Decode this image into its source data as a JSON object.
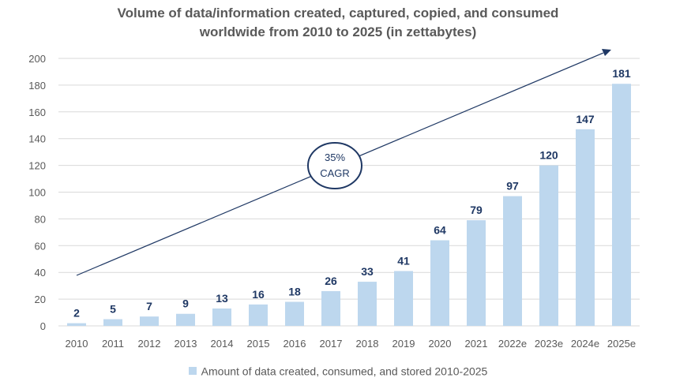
{
  "chart_data": {
    "type": "bar",
    "title_line1": "Volume of data/information created, captured, copied, and consumed",
    "title_line2": "worldwide from 2010 to 2025 (in zettabytes)",
    "categories": [
      "2010",
      "2011",
      "2012",
      "2013",
      "2014",
      "2015",
      "2016",
      "2017",
      "2018",
      "2019",
      "2020",
      "2021",
      "2022e",
      "2023e",
      "2024e",
      "2025e"
    ],
    "series": [
      {
        "name": "Amount of data created, consumed, and stored 2010-2025",
        "values": [
          2,
          5,
          7,
          9,
          13,
          16,
          18,
          26,
          33,
          41,
          64,
          79,
          97,
          120,
          147,
          181
        ]
      }
    ],
    "ylim": [
      0,
      200
    ],
    "yticks": [
      0,
      20,
      40,
      60,
      80,
      100,
      120,
      140,
      160,
      180,
      200
    ],
    "grid": true,
    "legend_position": "bottom",
    "annotation": {
      "line1": "35%",
      "line2": "CAGR"
    },
    "colors": {
      "bar": "#bdd7ee",
      "label": "#1f3864",
      "arrow": "#1f3864",
      "grid": "#d9d9d9",
      "axis_text": "#595959"
    }
  }
}
